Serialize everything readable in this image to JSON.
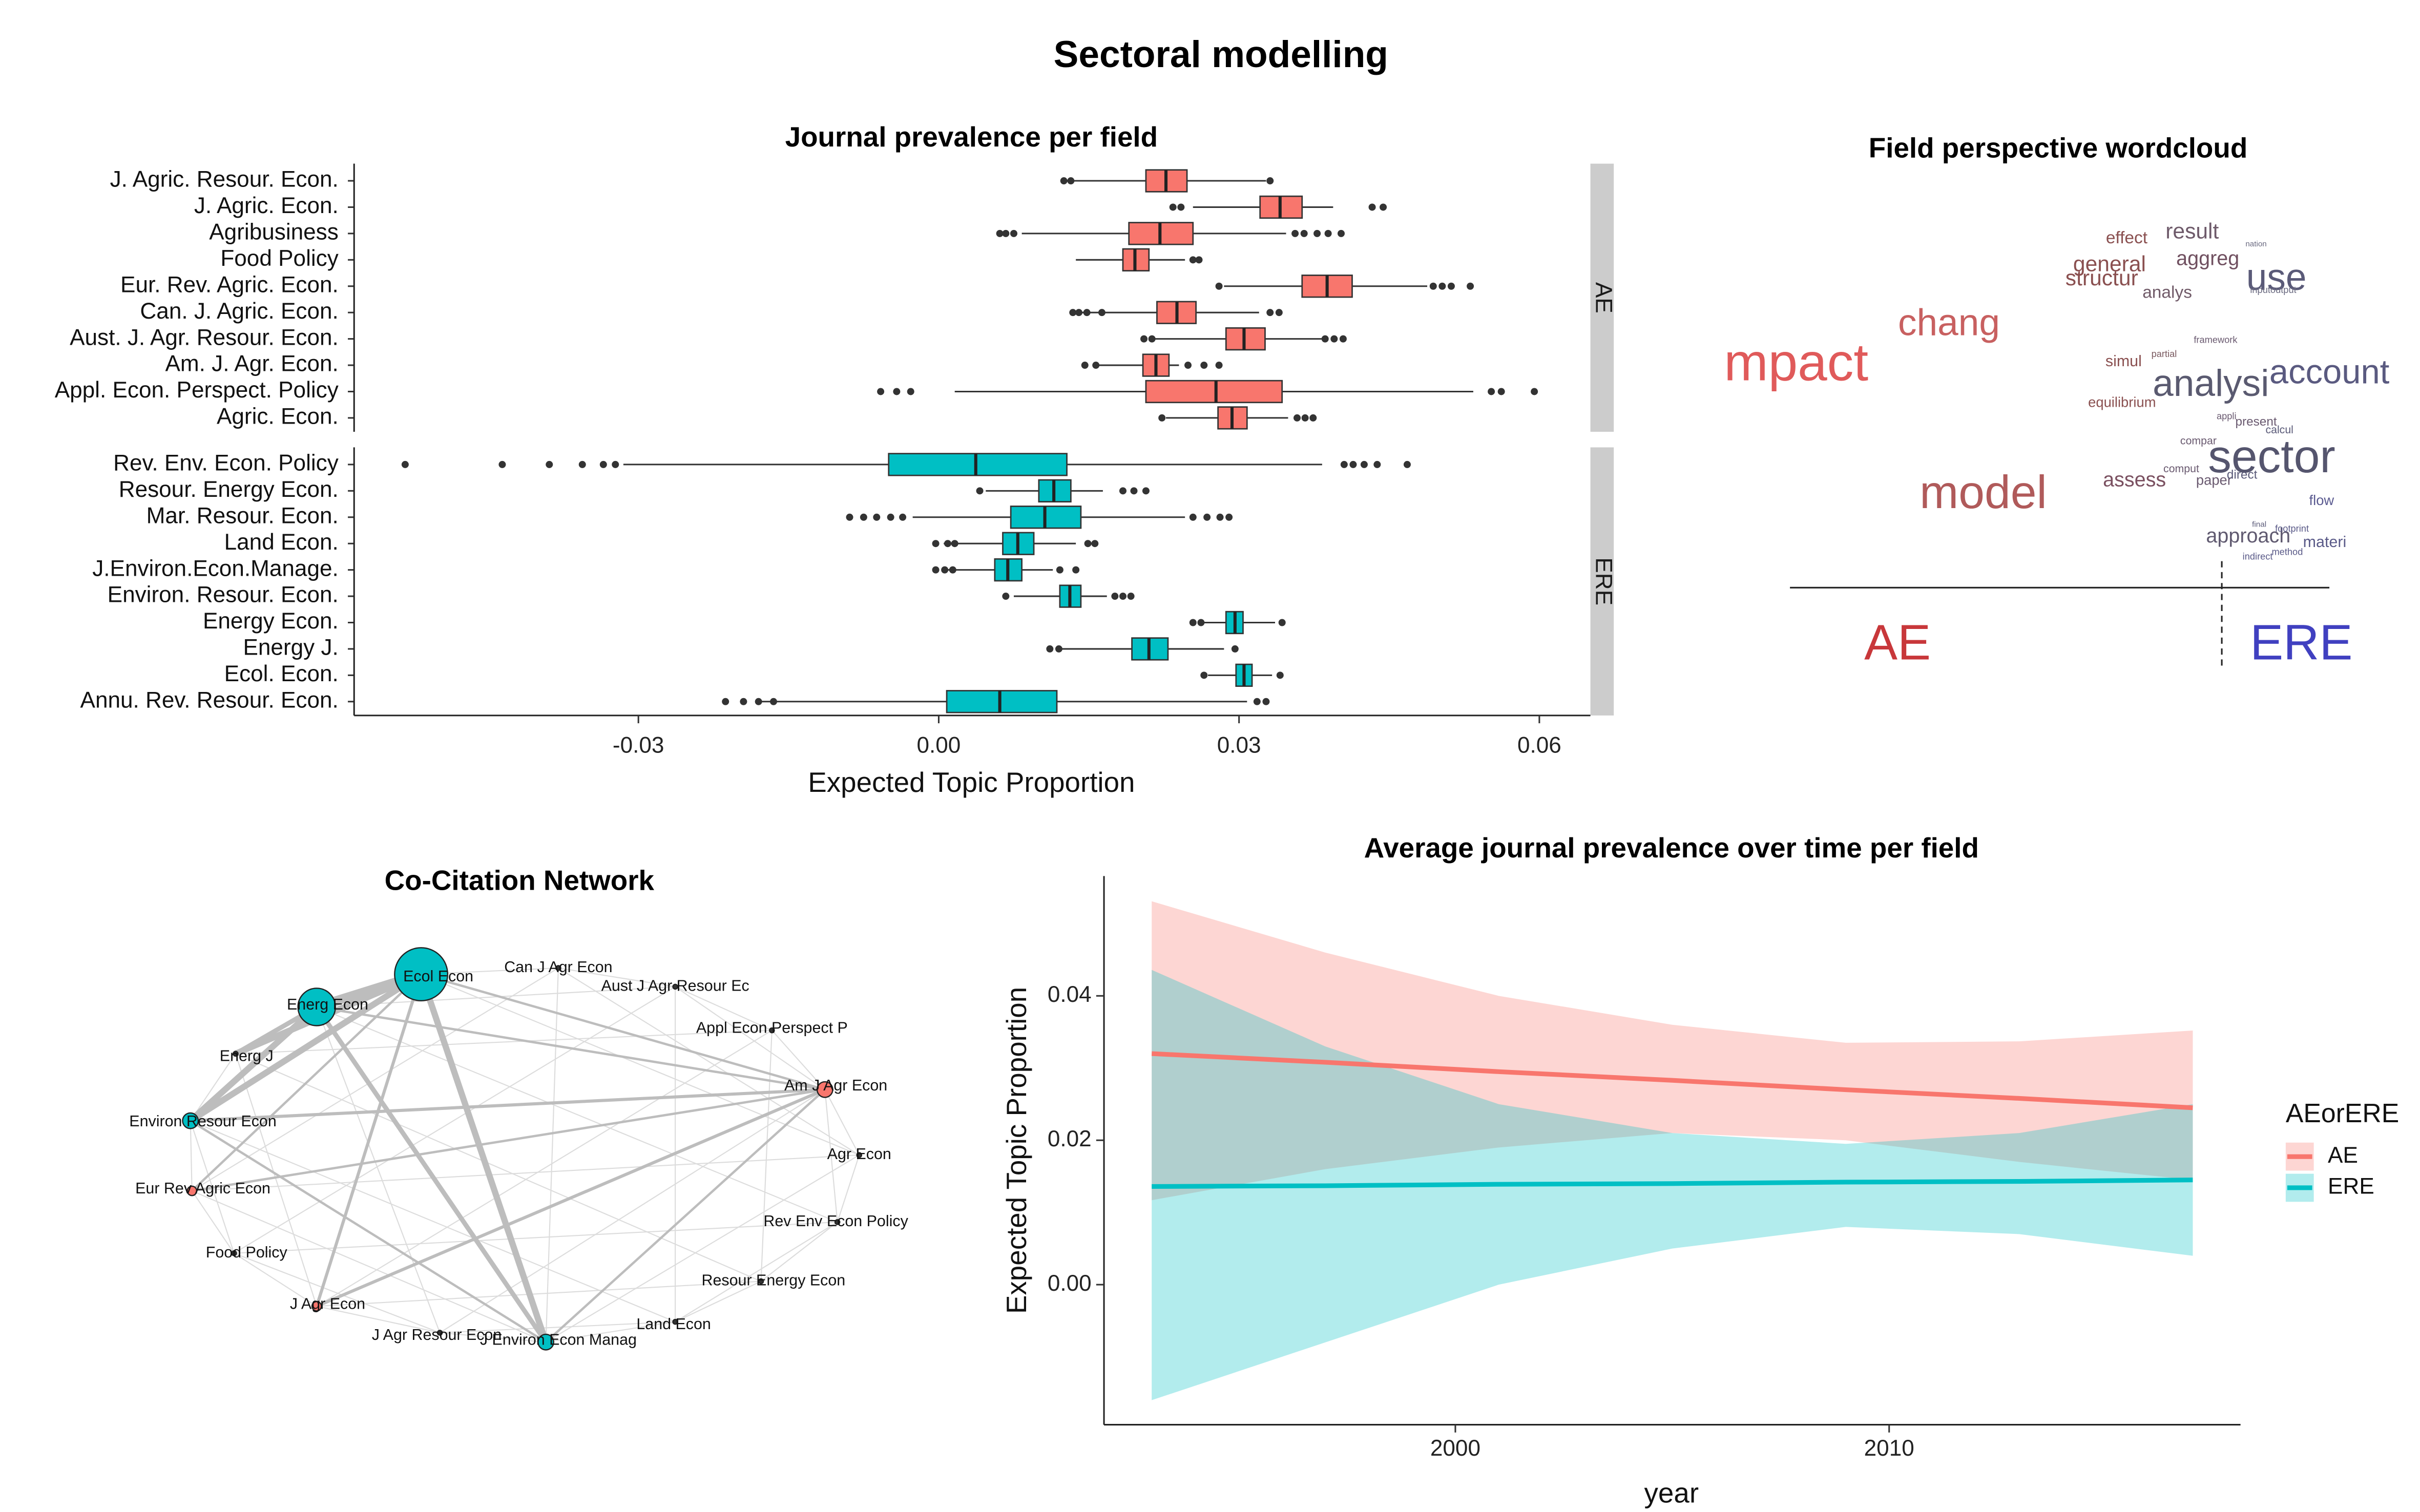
{
  "title": "Sectoral modelling",
  "chart_data": [
    {
      "type": "boxplot",
      "title": "Journal prevalence per field",
      "x_label": "Expected Topic Proportion",
      "xlim": [
        -0.0584,
        0.0651
      ],
      "xticks": [
        -0.03,
        {
          "value": 0,
          "label": "0.00"
        },
        0.03,
        0.06
      ],
      "facets": [
        {
          "label": "AE",
          "color": "#F8766D",
          "categories": [
            "J. Agric. Resour. Econ.",
            "J. Agric. Econ.",
            "Agribusiness",
            "Food Policy",
            "Eur. Rev. Agric. Econ.",
            "Can. J. Agric. Econ.",
            "Aust. J. Agr. Resour. Econ.",
            "Am. J. Agr. Econ.",
            "Appl. Econ. Perspect. Policy",
            "Agric. Econ."
          ],
          "boxes": [
            {
              "low": 0.0125,
              "q1": 0.0207,
              "median": 0.0227,
              "q3": 0.0248,
              "high": 0.0327,
              "outliers": [
                0.0125,
                0.0132,
                0.0331
              ]
            },
            {
              "low": 0.0254,
              "q1": 0.0321,
              "median": 0.0341,
              "q3": 0.0363,
              "high": 0.0394,
              "outliers": [
                0.0234,
                0.0242,
                0.0433,
                0.0444
              ]
            },
            {
              "low": 0.0083,
              "q1": 0.019,
              "median": 0.0221,
              "q3": 0.0254,
              "high": 0.0347,
              "outliers": [
                0.0061,
                0.0067,
                0.0075,
                0.0356,
                0.0365,
                0.0378,
                0.0389,
                0.0402
              ]
            },
            {
              "low": 0.0137,
              "q1": 0.0184,
              "median": 0.0196,
              "q3": 0.021,
              "high": 0.0246,
              "outliers": [
                0.0254,
                0.026
              ]
            },
            {
              "low": 0.0285,
              "q1": 0.0363,
              "median": 0.0388,
              "q3": 0.0413,
              "high": 0.0488,
              "outliers": [
                0.028,
                0.0494,
                0.0503,
                0.0512,
                0.0531
              ]
            },
            {
              "low": 0.0137,
              "q1": 0.0218,
              "median": 0.0238,
              "q3": 0.0257,
              "high": 0.032,
              "outliers": [
                0.0134,
                0.014,
                0.0148,
                0.0163,
                0.0331,
                0.034
              ]
            },
            {
              "low": 0.0213,
              "q1": 0.0287,
              "median": 0.0305,
              "q3": 0.0326,
              "high": 0.0383,
              "outliers": [
                0.0205,
                0.0213,
                0.0386,
                0.0395,
                0.0404
              ]
            },
            {
              "low": 0.0156,
              "q1": 0.0204,
              "median": 0.0217,
              "q3": 0.023,
              "high": 0.024,
              "outliers": [
                0.0146,
                0.0157,
                0.0249,
                0.0265,
                0.028
              ]
            },
            {
              "low": 0.0016,
              "q1": 0.0207,
              "median": 0.0277,
              "q3": 0.0343,
              "high": 0.0534,
              "outliers": [
                -0.0058,
                -0.0042,
                -0.0028,
                0.0552,
                0.0562,
                0.0595
              ]
            },
            {
              "low": 0.0227,
              "q1": 0.0279,
              "median": 0.0293,
              "q3": 0.0308,
              "high": 0.0349,
              "outliers": [
                0.0223,
                0.0358,
                0.0366,
                0.0374
              ]
            }
          ]
        },
        {
          "label": "ERE",
          "color": "#00BFC4",
          "categories": [
            "Rev. Env. Econ. Policy",
            "Resour. Energy Econ.",
            "Mar. Resour. Econ.",
            "Land Econ.",
            "J.Environ.Econ.Manage.",
            "Environ. Resour. Econ.",
            "Energy Econ.",
            "Energy J.",
            "Ecol. Econ.",
            "Annu. Rev. Resour. Econ."
          ],
          "boxes": [
            {
              "low": -0.0315,
              "q1": -0.005,
              "median": 0.0037,
              "q3": 0.0128,
              "high": 0.0383,
              "outliers": [
                -0.0533,
                -0.0436,
                -0.0389,
                -0.0356,
                -0.0335,
                -0.0323,
                0.0405,
                0.0414,
                0.0425,
                0.0438,
                0.0468
              ]
            },
            {
              "low": 0.0047,
              "q1": 0.01,
              "median": 0.0115,
              "q3": 0.0132,
              "high": 0.0164,
              "outliers": [
                0.0041,
                0.0184,
                0.0195,
                0.0207
              ]
            },
            {
              "low": -0.0026,
              "q1": 0.0072,
              "median": 0.0106,
              "q3": 0.0142,
              "high": 0.0246,
              "outliers": [
                -0.0089,
                -0.0075,
                -0.0062,
                -0.0048,
                -0.0036,
                0.0254,
                0.0268,
                0.0281,
                0.029
              ]
            },
            {
              "low": 0.0005,
              "q1": 0.0064,
              "median": 0.0079,
              "q3": 0.0095,
              "high": 0.0137,
              "outliers": [
                -0.0003,
                0.0009,
                0.0016,
                0.0149,
                0.0156
              ]
            },
            {
              "low": 0.0009,
              "q1": 0.0056,
              "median": 0.0069,
              "q3": 0.0083,
              "high": 0.0114,
              "outliers": [
                -0.0003,
                0.0006,
                0.0014,
                0.0121,
                0.0137
              ]
            },
            {
              "low": 0.0075,
              "q1": 0.0121,
              "median": 0.0131,
              "q3": 0.0142,
              "high": 0.0168,
              "outliers": [
                0.0067,
                0.0176,
                0.0184,
                0.0192
              ]
            },
            {
              "low": 0.0262,
              "q1": 0.0287,
              "median": 0.0296,
              "q3": 0.0304,
              "high": 0.0336,
              "outliers": [
                0.0254,
                0.0262,
                0.0343
              ]
            },
            {
              "low": 0.0121,
              "q1": 0.0193,
              "median": 0.021,
              "q3": 0.0229,
              "high": 0.0285,
              "outliers": [
                0.0111,
                0.012,
                0.0296
              ]
            },
            {
              "low": 0.0269,
              "q1": 0.0297,
              "median": 0.0305,
              "q3": 0.0313,
              "high": 0.0333,
              "outliers": [
                0.0265,
                0.0341
              ]
            },
            {
              "low": -0.0183,
              "q1": 0.0008,
              "median": 0.0061,
              "q3": 0.0118,
              "high": 0.0308,
              "outliers": [
                -0.0213,
                -0.0195,
                -0.018,
                -0.0165,
                0.0318,
                0.0327
              ]
            }
          ]
        }
      ]
    },
    {
      "type": "wordcloud",
      "title": "Field perspective wordcloud",
      "groups": [
        {
          "label": "AE",
          "color": "#C8373A"
        },
        {
          "label": "ERE",
          "color": "#4040C0"
        }
      ],
      "words": [
        {
          "text": "mpact",
          "color": "#E05A5A"
        },
        {
          "text": "chang",
          "color": "#C86060"
        },
        {
          "text": "model",
          "color": "#B05A5A"
        },
        {
          "text": "result",
          "color": "#6E5A6A"
        },
        {
          "text": "effect",
          "color": "#8A5050"
        },
        {
          "text": "aggreg",
          "color": "#705060"
        },
        {
          "text": "general",
          "color": "#8A5050"
        },
        {
          "text": "nation",
          "color": "#6A6A80"
        },
        {
          "text": "structur",
          "color": "#8A5050"
        },
        {
          "text": "analys",
          "color": "#705A68"
        },
        {
          "text": "use",
          "color": "#5A5A78"
        },
        {
          "text": "inputoutput",
          "color": "#6A6A80"
        },
        {
          "text": "framework",
          "color": "#6A5A70"
        },
        {
          "text": "partial",
          "color": "#7A5A60"
        },
        {
          "text": "simul",
          "color": "#8A5050"
        },
        {
          "text": "analysi",
          "color": "#5A5A70"
        },
        {
          "text": "account",
          "color": "#5A5A80"
        },
        {
          "text": "equilibrium",
          "color": "#8A5050"
        },
        {
          "text": "appli",
          "color": "#6A5A70"
        },
        {
          "text": "present",
          "color": "#6A5A70"
        },
        {
          "text": "calcul",
          "color": "#5A5A78"
        },
        {
          "text": "compar",
          "color": "#6A5A70"
        },
        {
          "text": "sector",
          "color": "#55556E"
        },
        {
          "text": "assess",
          "color": "#7A5060"
        },
        {
          "text": "comput",
          "color": "#6A5A70"
        },
        {
          "text": "paper",
          "color": "#6A5A70"
        },
        {
          "text": "direct",
          "color": "#5A5A78"
        },
        {
          "text": "flow",
          "color": "#5A5A90"
        },
        {
          "text": "approach",
          "color": "#605A70"
        },
        {
          "text": "final",
          "color": "#5A5A78"
        },
        {
          "text": "footprint",
          "color": "#5A5A88"
        },
        {
          "text": "materi",
          "color": "#5A5A88"
        },
        {
          "text": "indirect",
          "color": "#5A5A88"
        },
        {
          "text": "method",
          "color": "#5A5A88"
        }
      ]
    },
    {
      "type": "network",
      "title": "Co-Citation Network",
      "nodes": [
        {
          "label": "Ecol Econ",
          "color": "#00BFC4"
        },
        {
          "label": "Energ Econ",
          "color": "#00BFC4"
        },
        {
          "label": "Energ J",
          "color": "#333333"
        },
        {
          "label": "Environ Resour Econ",
          "color": "#00BFC4"
        },
        {
          "label": "Eur Rev Agric Econ",
          "color": "#F8766D"
        },
        {
          "label": "Food Policy",
          "color": "#333333"
        },
        {
          "label": "J Agr Econ",
          "color": "#F8766D"
        },
        {
          "label": "J Agr Resour Econ",
          "color": "#333333"
        },
        {
          "label": "J Environ Econ Manag",
          "color": "#00BFC4"
        },
        {
          "label": "Land Econ",
          "color": "#333333"
        },
        {
          "label": "Resour Energy Econ",
          "color": "#333333"
        },
        {
          "label": "Rev Env Econ Policy",
          "color": "#333333"
        },
        {
          "label": "Agr Econ",
          "color": "#333333"
        },
        {
          "label": "Am J Agr Econ",
          "color": "#F8766D"
        },
        {
          "label": "Appl Econ Perspect P",
          "color": "#333333"
        },
        {
          "label": "Aust J Agr Resour Ec",
          "color": "#333333"
        },
        {
          "label": "Can J Agr Econ",
          "color": "#333333"
        }
      ]
    },
    {
      "type": "line",
      "title": "Average journal prevalence over time per field",
      "x_label": "year",
      "y_label": "Expected Topic Proportion",
      "legend_title": "AEorERE",
      "legend": "right",
      "x": [
        1993,
        1997,
        2001,
        2005,
        2009,
        2013,
        2017
      ],
      "xlim": [
        1991.9,
        2018.1
      ],
      "xticks": [
        2000,
        2010
      ],
      "ylim": [
        -0.0194,
        0.0566
      ],
      "yticks": [
        {
          "value": 0,
          "label": "0.00"
        },
        0.02,
        0.04
      ],
      "series": [
        {
          "name": "AE",
          "color": "#F8766D",
          "band_color": "#F8766D",
          "values": [
            0.032,
            0.0308,
            0.0295,
            0.0283,
            0.027,
            0.0258,
            0.0245
          ],
          "lower": [
            0.0117,
            0.016,
            0.019,
            0.021,
            0.02,
            0.017,
            0.0145
          ],
          "upper": [
            0.0531,
            0.046,
            0.04,
            0.036,
            0.0335,
            0.0337,
            0.0352
          ]
        },
        {
          "name": "ERE",
          "color": "#00BFC4",
          "band_color": "#00BFC4",
          "values": [
            0.0136,
            0.0137,
            0.0139,
            0.014,
            0.0142,
            0.0143,
            0.0145
          ],
          "lower": [
            -0.016,
            -0.008,
            0.0,
            0.005,
            0.008,
            0.007,
            0.004
          ],
          "upper": [
            0.0436,
            0.033,
            0.025,
            0.021,
            0.0195,
            0.021,
            0.025
          ]
        }
      ]
    }
  ]
}
